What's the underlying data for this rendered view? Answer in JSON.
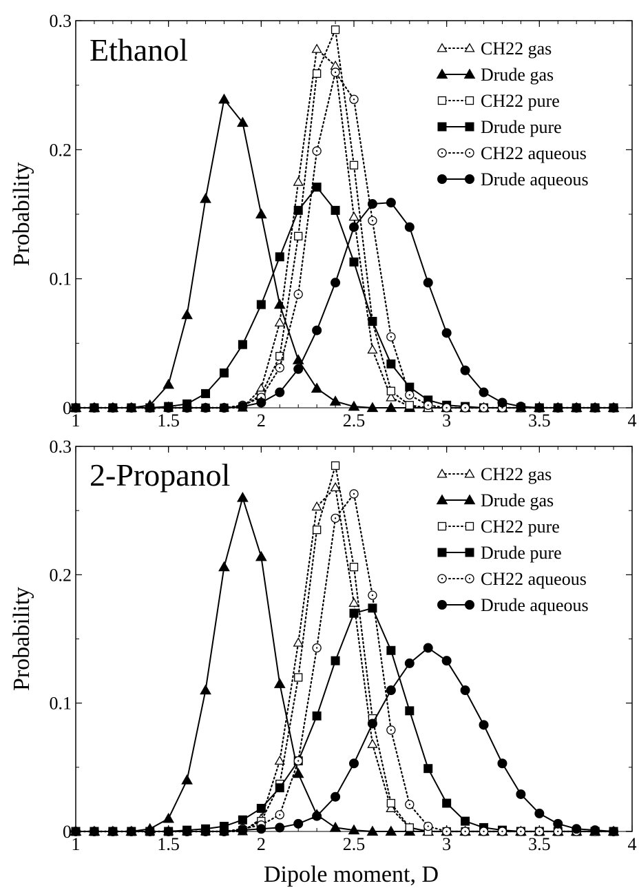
{
  "xlabel": "Dipole moment, D",
  "chart_data": [
    {
      "type": "line",
      "title": "Ethanol",
      "xlabel": "Dipole moment, D",
      "ylabel": "Probability",
      "xlim": [
        1,
        4
      ],
      "ylim": [
        0,
        0.3
      ],
      "xticks": [
        "1",
        "1.5",
        "2",
        "2.5",
        "3",
        "3.5",
        "4"
      ],
      "yticks": [
        "0",
        "0.1",
        "0.2",
        "0.3"
      ],
      "grid": false,
      "legend_position": "top-right",
      "x": [
        1.0,
        1.1,
        1.2,
        1.3,
        1.4,
        1.5,
        1.6,
        1.7,
        1.8,
        1.9,
        2.0,
        2.1,
        2.2,
        2.3,
        2.4,
        2.5,
        2.6,
        2.7,
        2.8,
        2.9,
        3.0,
        3.1,
        3.2,
        3.3,
        3.4,
        3.5,
        3.6,
        3.7,
        3.8,
        3.9
      ],
      "series": [
        {
          "name": "CH22 gas",
          "marker": "triangle",
          "filled": false,
          "line": "dotted",
          "values": [
            0,
            0,
            0,
            0,
            0,
            0,
            0,
            0,
            0,
            0,
            0.015,
            0.066,
            0.175,
            0.278,
            0.265,
            0.148,
            0.045,
            0.008,
            0.001,
            0,
            0,
            0,
            0,
            0,
            0,
            0,
            0,
            0,
            0,
            0
          ]
        },
        {
          "name": "Drude gas",
          "marker": "triangle",
          "filled": true,
          "line": "solid",
          "values": [
            0,
            0,
            0,
            0,
            0.002,
            0.018,
            0.072,
            0.162,
            0.239,
            0.221,
            0.15,
            0.08,
            0.037,
            0.015,
            0.005,
            0.001,
            0,
            0,
            0,
            0,
            0,
            0,
            0,
            0,
            0,
            0,
            0,
            0,
            0,
            0
          ]
        },
        {
          "name": "CH22 pure",
          "marker": "square",
          "filled": false,
          "line": "dotted",
          "values": [
            0,
            0,
            0,
            0,
            0,
            0,
            0,
            0,
            0,
            0.001,
            0.01,
            0.04,
            0.133,
            0.259,
            0.293,
            0.188,
            0.067,
            0.013,
            0.002,
            0,
            0,
            0,
            0,
            0,
            0,
            0,
            0,
            0,
            0,
            0
          ]
        },
        {
          "name": "Drude pure",
          "marker": "square",
          "filled": true,
          "line": "solid",
          "values": [
            0,
            0,
            0,
            0,
            0,
            0.001,
            0.003,
            0.011,
            0.027,
            0.049,
            0.08,
            0.117,
            0.153,
            0.171,
            0.153,
            0.113,
            0.067,
            0.034,
            0.016,
            0.006,
            0.002,
            0.001,
            0,
            0,
            0,
            0,
            0,
            0,
            0,
            0
          ]
        },
        {
          "name": "CH22 aqueous",
          "marker": "circle",
          "filled": false,
          "line": "dotted",
          "values": [
            0,
            0,
            0,
            0,
            0,
            0,
            0,
            0,
            0,
            0.002,
            0.008,
            0.031,
            0.088,
            0.199,
            0.26,
            0.239,
            0.145,
            0.055,
            0.01,
            0.002,
            0,
            0,
            0,
            0,
            0,
            0,
            0,
            0,
            0,
            0
          ]
        },
        {
          "name": "Drude aqueous",
          "marker": "circle",
          "filled": true,
          "line": "solid",
          "values": [
            0,
            0,
            0,
            0,
            0,
            0,
            0,
            0,
            0,
            0.001,
            0.004,
            0.012,
            0.03,
            0.06,
            0.097,
            0.14,
            0.158,
            0.159,
            0.14,
            0.097,
            0.058,
            0.029,
            0.012,
            0.004,
            0.001,
            0,
            0,
            0,
            0,
            0
          ]
        }
      ]
    },
    {
      "type": "line",
      "title": "2-Propanol",
      "xlabel": "Dipole moment, D",
      "ylabel": "Probability",
      "xlim": [
        1,
        4
      ],
      "ylim": [
        0,
        0.3
      ],
      "xticks": [
        "1",
        "1.5",
        "2",
        "2.5",
        "3",
        "3.5",
        "4"
      ],
      "yticks": [
        "0",
        "0.1",
        "0.2",
        "0.3"
      ],
      "grid": false,
      "legend_position": "top-right",
      "x": [
        1.0,
        1.1,
        1.2,
        1.3,
        1.4,
        1.5,
        1.6,
        1.7,
        1.8,
        1.9,
        2.0,
        2.1,
        2.2,
        2.3,
        2.4,
        2.5,
        2.6,
        2.7,
        2.8,
        2.9,
        3.0,
        3.1,
        3.2,
        3.3,
        3.4,
        3.5,
        3.6,
        3.7,
        3.8,
        3.9
      ],
      "series": [
        {
          "name": "CH22 gas",
          "marker": "triangle",
          "filled": false,
          "line": "dotted",
          "values": [
            0,
            0,
            0,
            0,
            0,
            0,
            0,
            0,
            0,
            0,
            0.01,
            0.055,
            0.147,
            0.253,
            0.268,
            0.178,
            0.068,
            0.018,
            0.003,
            0,
            0,
            0,
            0,
            0,
            0,
            0,
            0,
            0,
            0,
            0
          ]
        },
        {
          "name": "Drude gas",
          "marker": "triangle",
          "filled": true,
          "line": "solid",
          "values": [
            0,
            0,
            0,
            0,
            0.002,
            0.01,
            0.04,
            0.11,
            0.206,
            0.26,
            0.214,
            0.115,
            0.045,
            0.013,
            0.003,
            0.001,
            0,
            0,
            0,
            0,
            0,
            0,
            0,
            0,
            0,
            0,
            0,
            0,
            0,
            0
          ]
        },
        {
          "name": "CH22 pure",
          "marker": "square",
          "filled": false,
          "line": "dotted",
          "values": [
            0,
            0,
            0,
            0,
            0,
            0,
            0,
            0,
            0,
            0.001,
            0.008,
            0.037,
            0.12,
            0.235,
            0.285,
            0.206,
            0.088,
            0.022,
            0.003,
            0,
            0,
            0,
            0,
            0,
            0,
            0,
            0,
            0,
            0,
            0
          ]
        },
        {
          "name": "Drude pure",
          "marker": "square",
          "filled": true,
          "line": "solid",
          "values": [
            0,
            0,
            0,
            0,
            0,
            0,
            0.001,
            0.002,
            0.004,
            0.009,
            0.018,
            0.034,
            0.055,
            0.09,
            0.133,
            0.17,
            0.174,
            0.141,
            0.094,
            0.049,
            0.022,
            0.008,
            0.003,
            0.001,
            0,
            0,
            0,
            0,
            0,
            0
          ]
        },
        {
          "name": "CH22 aqueous",
          "marker": "circle",
          "filled": false,
          "line": "dotted",
          "values": [
            0,
            0,
            0,
            0,
            0,
            0,
            0,
            0,
            0,
            0.002,
            0.005,
            0.013,
            0.055,
            0.143,
            0.244,
            0.263,
            0.184,
            0.079,
            0.021,
            0.004,
            0,
            0,
            0,
            0,
            0,
            0,
            0,
            0,
            0,
            0
          ]
        },
        {
          "name": "Drude aqueous",
          "marker": "circle",
          "filled": true,
          "line": "solid",
          "values": [
            0,
            0,
            0,
            0,
            0,
            0,
            0,
            0,
            0,
            0.001,
            0.002,
            0.003,
            0.006,
            0.012,
            0.027,
            0.053,
            0.084,
            0.11,
            0.131,
            0.143,
            0.133,
            0.11,
            0.083,
            0.053,
            0.029,
            0.014,
            0.006,
            0.002,
            0.001,
            0
          ]
        }
      ]
    }
  ]
}
